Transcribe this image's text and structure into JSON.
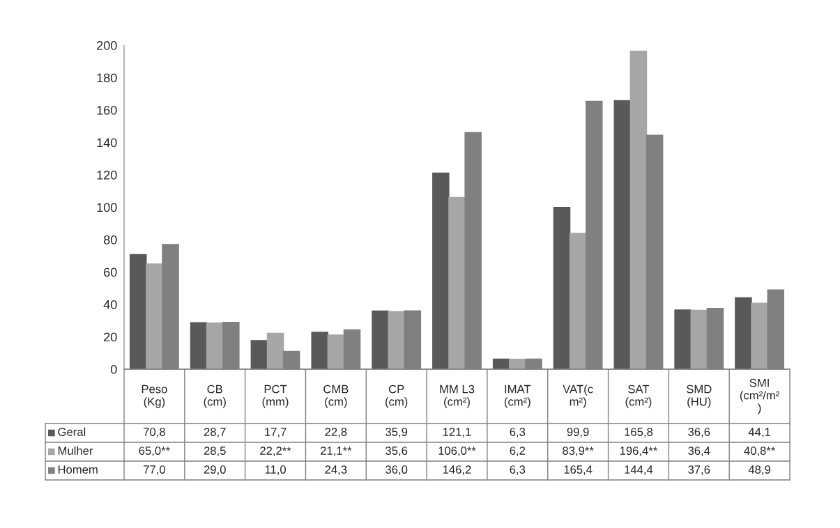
{
  "chart_data": {
    "type": "bar",
    "categories": [
      "Peso\n(Kg)",
      "CB\n(cm)",
      "PCT\n(mm)",
      "CMB\n(cm)",
      "CP\n(cm)",
      "MM L3\n(cm²)",
      "IMAT\n(cm²)",
      "VAT(c\nm²)",
      "SAT\n(cm²)",
      "SMD\n(HU)",
      "SMI\n(cm²/m²\n)"
    ],
    "series": [
      {
        "name": "Geral",
        "color": "#595959",
        "values": [
          70.8,
          28.7,
          17.7,
          22.8,
          35.9,
          121.1,
          6.3,
          99.9,
          165.8,
          36.6,
          44.1
        ],
        "value_labels": [
          "70,8",
          "28,7",
          "17,7",
          "22,8",
          "35,9",
          "121,1",
          "6,3",
          "99,9",
          "165,8",
          "36,6",
          "44,1"
        ]
      },
      {
        "name": "Mulher",
        "color": "#a6a6a6",
        "values": [
          65.0,
          28.5,
          22.2,
          21.1,
          35.6,
          106.0,
          6.2,
          83.9,
          196.4,
          36.4,
          40.8
        ],
        "value_labels": [
          "65,0**",
          "28,5",
          "22,2**",
          "21,1**",
          "35,6",
          "106,0**",
          "6,2",
          "83,9**",
          "196,4**",
          "36,4",
          "40,8**"
        ]
      },
      {
        "name": "Homem",
        "color": "#808080",
        "values": [
          77.0,
          29.0,
          11.0,
          24.3,
          36.0,
          146.2,
          6.3,
          165.4,
          144.4,
          37.6,
          48.9
        ],
        "value_labels": [
          "77,0",
          "29,0",
          "11,0",
          "24,3",
          "36,0",
          "146,2",
          "6,3",
          "165,4",
          "144,4",
          "37,6",
          "48,9"
        ]
      }
    ],
    "ylim": [
      0,
      200
    ],
    "yticks": [
      0,
      20,
      40,
      60,
      80,
      100,
      120,
      140,
      160,
      180,
      200
    ],
    "grid": false,
    "legend": "bottom"
  }
}
